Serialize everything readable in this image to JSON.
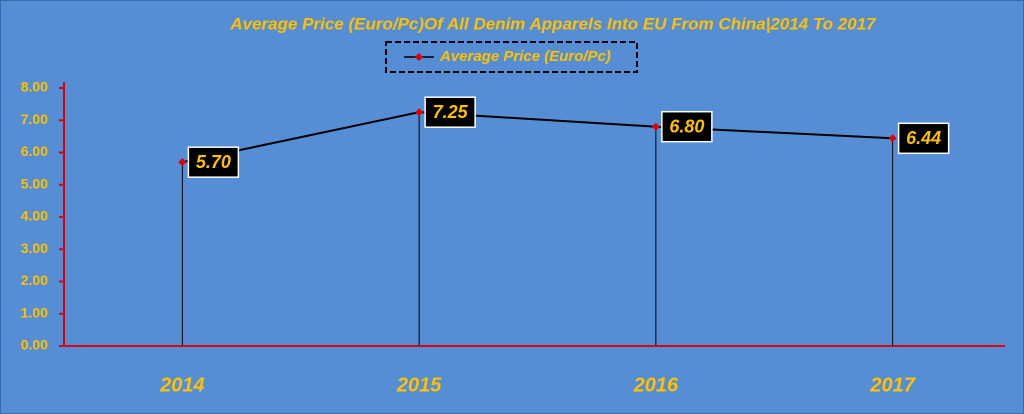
{
  "chart_data": {
    "type": "line",
    "title": "Average Price (Euro/Pc)Of All Denim Apparels Into EU From China|2014 To 2017",
    "categories": [
      "2014",
      "2015",
      "2016",
      "2017"
    ],
    "series": [
      {
        "name": "Average Price (Euro/Pc)",
        "color": "#000000",
        "marker_color": "#e00000",
        "values": [
          5.7,
          7.25,
          6.8,
          6.44
        ],
        "value_labels": [
          "5.70",
          "7.25",
          "6.80",
          "6.44"
        ]
      }
    ],
    "ylim": [
      0,
      8
    ],
    "yticks": [
      {
        "value": 0,
        "label": "0.00"
      },
      {
        "value": 1,
        "label": "1.00"
      },
      {
        "value": 2,
        "label": "2.00"
      },
      {
        "value": 3,
        "label": "3.00"
      },
      {
        "value": 4,
        "label": "4.00"
      },
      {
        "value": 5,
        "label": "5.00"
      },
      {
        "value": 6,
        "label": "6.00"
      },
      {
        "value": 7,
        "label": "7.00"
      },
      {
        "value": 8,
        "label": "8.00"
      }
    ],
    "legend": "top",
    "grid": false,
    "background": "#558ed5",
    "axis_color": "#e00000",
    "text_color": "#ffc000"
  }
}
